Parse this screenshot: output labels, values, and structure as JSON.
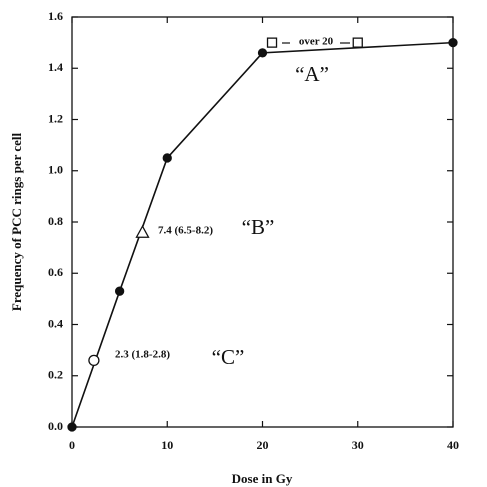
{
  "chart_data": {
    "type": "line",
    "x_label": "Dose in Gy",
    "y_label": "Frequency of PCC rings per cell",
    "xlim": [
      0,
      40
    ],
    "xticks": [
      0,
      10,
      20,
      30,
      40
    ],
    "ylim": [
      0,
      1.6
    ],
    "yticks": [
      {
        "value": 0,
        "label": "0.0"
      },
      0.2,
      0.4,
      0.6,
      0.8,
      {
        "value": 1,
        "label": "1.0"
      },
      1.2,
      1.4,
      1.6
    ],
    "series": [
      {
        "marker": "filled-circle",
        "line": true,
        "color": "#111111",
        "x": [
          0,
          5,
          10,
          20,
          40
        ],
        "values": [
          0,
          0.53,
          1.05,
          1.46,
          1.5
        ]
      },
      {
        "marker": "open-circle",
        "line": false,
        "color": "#111111",
        "x": [
          2.3
        ],
        "values": [
          0.26
        ]
      },
      {
        "marker": "open-triangle",
        "line": false,
        "color": "#111111",
        "x": [
          7.4
        ],
        "values": [
          0.76
        ]
      },
      {
        "marker": "open-square",
        "line": false,
        "color": "#111111",
        "x": [
          21,
          30
        ],
        "values": [
          1.5,
          1.5
        ]
      }
    ],
    "annotations": [
      "over 20",
      "7.4 (6.5-8.2)",
      "2.3 (1.8-2.8)",
      "“A”",
      "“B”",
      "“C”"
    ]
  }
}
